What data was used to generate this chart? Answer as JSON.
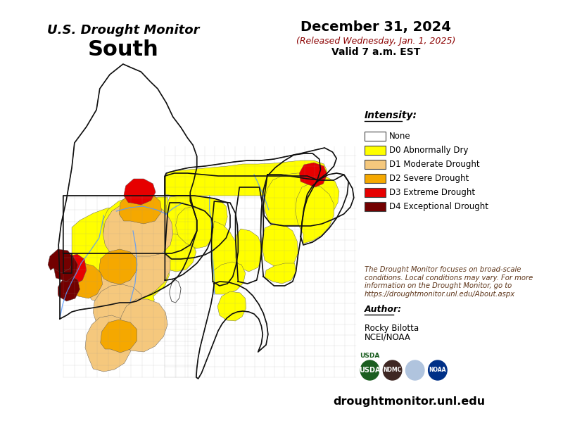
{
  "title_line1": "U.S. Drought Monitor",
  "title_line2": "South",
  "date_line1": "December 31, 2024",
  "date_line2": "(Released Wednesday, Jan. 1, 2025)",
  "date_line3": "Valid 7 a.m. EST",
  "intensity_label": "Intensity:",
  "legend_items": [
    {
      "color": "#FFFFFF",
      "label": "None"
    },
    {
      "color": "#FFFF00",
      "label": "D0 Abnormally Dry"
    },
    {
      "color": "#F5C87D",
      "label": "D1 Moderate Drought"
    },
    {
      "color": "#F5A800",
      "label": "D2 Severe Drought"
    },
    {
      "color": "#E60000",
      "label": "D3 Extreme Drought"
    },
    {
      "color": "#730000",
      "label": "D4 Exceptional Drought"
    }
  ],
  "note_text": "The Drought Monitor focuses on broad-scale\nconditions. Local conditions may vary. For more\ninformation on the Drought Monitor, go to\nhttps://droughtmonitor.unl.edu/About.aspx",
  "author_label": "Author:",
  "author_name": "Rocky Bilotta",
  "author_org": "NCEI/NOAA",
  "website": "droughtmonitor.unl.edu",
  "bg_color": "#FFFFFF",
  "title_color": "#000000",
  "date_color": "#000000",
  "date2_color": "#8B0000",
  "note_color": "#5C3317",
  "website_color": "#000000"
}
